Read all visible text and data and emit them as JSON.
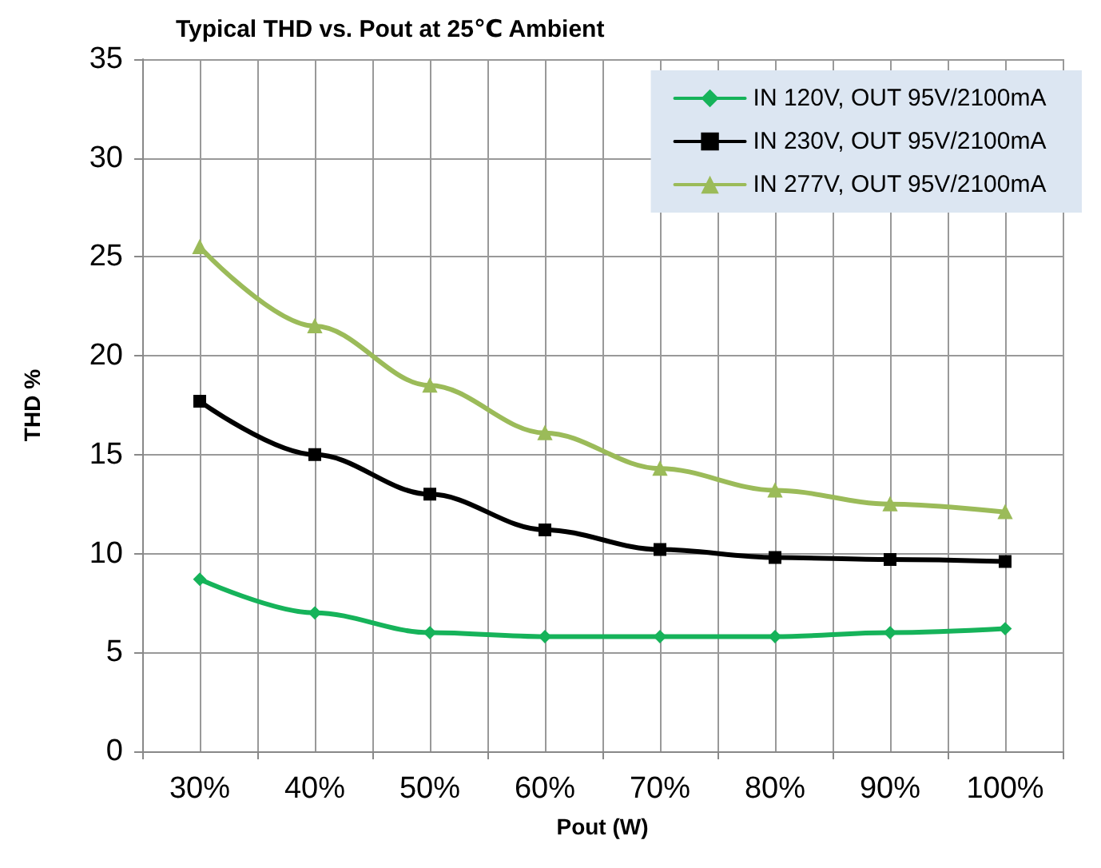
{
  "chart_data": {
    "type": "line",
    "title": "Typical THD vs. Pout at 25℃ Ambient",
    "xlabel": "Pout (W)",
    "ylabel": "THD %",
    "categories": [
      "30%",
      "40%",
      "50%",
      "60%",
      "70%",
      "80%",
      "90%",
      "100%"
    ],
    "series": [
      {
        "name": "IN 120V, OUT 95V/2100mA",
        "color": "#16b35a",
        "marker": "diamond",
        "values": [
          8.7,
          7.0,
          6.0,
          5.8,
          5.8,
          5.8,
          6.0,
          6.2
        ]
      },
      {
        "name": "IN 230V, OUT 95V/2100mA",
        "color": "#000000",
        "marker": "square",
        "values": [
          17.7,
          15.0,
          13.0,
          11.2,
          10.2,
          9.8,
          9.7,
          9.6
        ]
      },
      {
        "name": "IN 277V, OUT 95V/2100mA",
        "color": "#9bbb59",
        "marker": "triangle",
        "values": [
          25.5,
          21.5,
          18.5,
          16.1,
          14.3,
          13.2,
          12.5,
          12.1
        ]
      }
    ],
    "ylim": [
      0,
      35
    ],
    "yticks": [
      0,
      5,
      10,
      15,
      20,
      25,
      30,
      35
    ],
    "grid": true,
    "legend": "top right"
  }
}
